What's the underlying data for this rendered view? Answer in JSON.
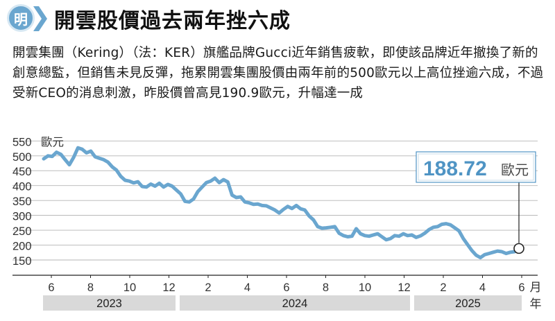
{
  "header": {
    "badge": "明",
    "title": "開雲股價過去兩年挫六成"
  },
  "description": "開雲集團（Kering）（法：KER）旗艦品牌Gucci近年銷售疲軟，即使該品牌近年撤換了新的創意總監，但銷售未見反彈，拖累開雲集團股價由兩年前的500歐元以上高位挫逾六成，不過受新CEO的消息刺激，昨股價曾高見190.9歐元，升幅達一成",
  "colors": {
    "line": "#6aa6cf",
    "callout": "#4f94c4",
    "year_band": "#d9d9d9",
    "grid": "#b5b5b5"
  },
  "chart_data": {
    "type": "line",
    "y_unit_label": "歐元",
    "x_unit_label": "月",
    "year_unit_label": "年",
    "ylim": [
      120,
      550
    ],
    "y_ticks": [
      550,
      500,
      450,
      400,
      350,
      300,
      250,
      200,
      150
    ],
    "x_month_ticks": [
      "6",
      "8",
      "10",
      "12",
      "2",
      "4",
      "6",
      "8",
      "10",
      "12",
      "2",
      "4",
      "6"
    ],
    "years": [
      "2023",
      "2024",
      "2025"
    ],
    "grid": true,
    "last_value_label": "188.72",
    "last_value_unit": "歐元",
    "last_value": 188.72,
    "series": [
      {
        "values": [
          490,
          500,
          498,
          512,
          505,
          487,
          470,
          495,
          527,
          522,
          510,
          516,
          497,
          492,
          487,
          479,
          463,
          452,
          431,
          418,
          415,
          409,
          413,
          397,
          395,
          405,
          398,
          408,
          395,
          404,
          398,
          385,
          372,
          347,
          345,
          355,
          380,
          395,
          410,
          415,
          425,
          410,
          420,
          412,
          368,
          360,
          362,
          345,
          342,
          337,
          338,
          333,
          332,
          325,
          318,
          308,
          320,
          330,
          323,
          333,
          322,
          318,
          298,
          285,
          262,
          257,
          258,
          260,
          262,
          240,
          232,
          228,
          230,
          255,
          238,
          232,
          230,
          234,
          238,
          228,
          218,
          222,
          232,
          230,
          238,
          232,
          234,
          226,
          231,
          240,
          252,
          260,
          262,
          270,
          272,
          268,
          258,
          248,
          222,
          202,
          182,
          166,
          158,
          168,
          172,
          176,
          180,
          178,
          172,
          176,
          178,
          188.72
        ]
      }
    ]
  }
}
